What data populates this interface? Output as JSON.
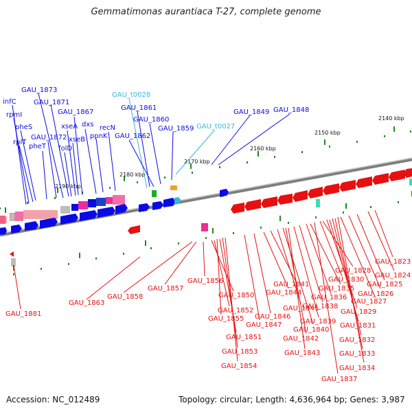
{
  "title": "Gemmatimonas aurantiaca T-27, complete genome",
  "footer": {
    "accession": "Accession: NC_012489",
    "topology": "Topology: circular; Length: 4,636,964 bp; Genes: 3,987"
  },
  "colors": {
    "forward": "#0a0ae6",
    "reverse": "#e61010",
    "trna": "#38b8d8",
    "backbone": "#8c8c8c"
  },
  "ticks": [
    "2140 kbp",
    "2150 kbp",
    "2160 kbp",
    "2170 kbp",
    "2180 kbp",
    "2190 kbp"
  ],
  "top_labels": [
    {
      "text": "infC",
      "color": "blue"
    },
    {
      "text": "rpmI",
      "color": "blue"
    },
    {
      "text": "rplT",
      "color": "blue"
    },
    {
      "text": "pheS",
      "color": "blue"
    },
    {
      "text": "pheT",
      "color": "blue"
    },
    {
      "text": "GAU_1873",
      "color": "blue"
    },
    {
      "text": "GAU_1871",
      "color": "blue"
    },
    {
      "text": "GAU_1872",
      "color": "blue"
    },
    {
      "text": "GAU_1867",
      "color": "blue"
    },
    {
      "text": "xseA",
      "color": "blue"
    },
    {
      "text": "xseB",
      "color": "blue"
    },
    {
      "text": "folD",
      "color": "blue"
    },
    {
      "text": "dxs",
      "color": "blue"
    },
    {
      "text": "ppnK",
      "color": "blue"
    },
    {
      "text": "recN",
      "color": "blue"
    },
    {
      "text": "GAU_t0028",
      "color": "cyan"
    },
    {
      "text": "GAU_1861",
      "color": "blue"
    },
    {
      "text": "GAU_1860",
      "color": "blue"
    },
    {
      "text": "GAU_1862",
      "color": "blue"
    },
    {
      "text": "GAU_1859",
      "color": "blue"
    },
    {
      "text": "GAU_t0027",
      "color": "cyan"
    },
    {
      "text": "GAU_1849",
      "color": "blue"
    },
    {
      "text": "GAU_1848",
      "color": "blue"
    }
  ],
  "bottom_labels": [
    "GAU_1881",
    "GAU_1863",
    "GAU_1858",
    "GAU_1857",
    "GAU_1856",
    "GAU_1850",
    "GAU_1852",
    "GAU_1855",
    "GAU_1851",
    "GAU_1853",
    "GAU_1854",
    "GAU_1847",
    "GAU_1846",
    "GAU_1844",
    "GAU_1841",
    "GAU_1845",
    "GAU_1840",
    "GAU_1842",
    "GAU_1843",
    "GAU_1839",
    "GAU_1838",
    "GAU_1836",
    "GAU_1835",
    "GAU_1830",
    "GAU_1828",
    "GAU_1829",
    "GAU_1831",
    "GAU_1832",
    "GAU_1833",
    "GAU_1834",
    "GAU_1837",
    "GAU_1827",
    "GAU_1826",
    "GAU_1825",
    "GAU_1824",
    "GAU_1823"
  ]
}
